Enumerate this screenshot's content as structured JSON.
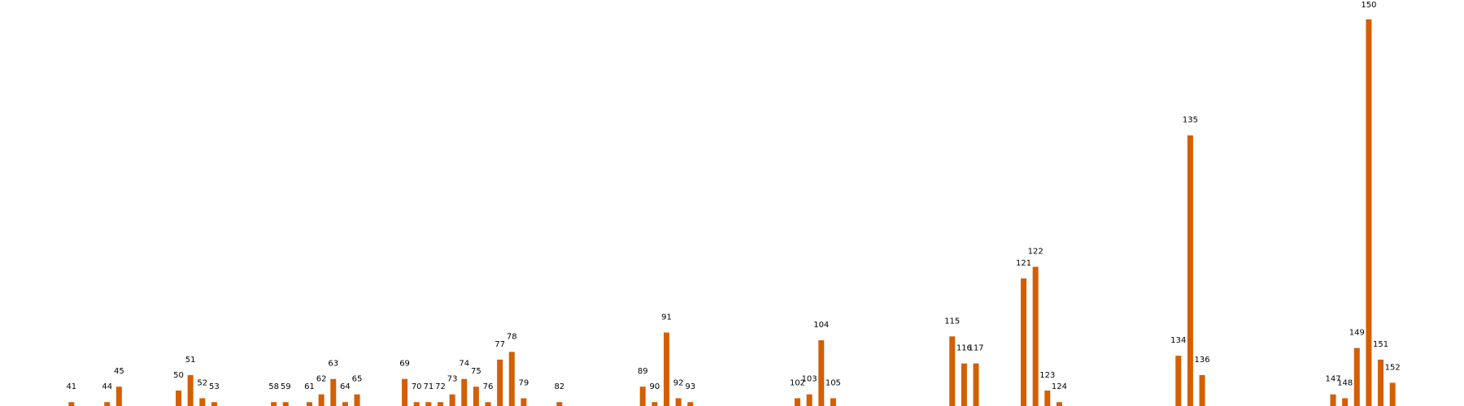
{
  "chart_data": {
    "type": "bar",
    "x": [
      41,
      44,
      45,
      50,
      51,
      52,
      53,
      58,
      59,
      61,
      62,
      63,
      64,
      65,
      69,
      70,
      71,
      72,
      73,
      74,
      75,
      76,
      77,
      78,
      79,
      82,
      89,
      90,
      91,
      92,
      93,
      102,
      103,
      104,
      105,
      115,
      116,
      117,
      121,
      122,
      123,
      124,
      134,
      135,
      136,
      147,
      148,
      149,
      150,
      151,
      152
    ],
    "values": [
      1,
      1,
      5,
      4,
      8,
      2,
      1,
      1,
      1,
      1,
      3,
      7,
      1,
      3,
      7,
      1,
      1,
      1,
      3,
      7,
      5,
      1,
      12,
      14,
      2,
      1,
      5,
      1,
      19,
      2,
      1,
      2,
      3,
      17,
      2,
      18,
      11,
      11,
      33,
      36,
      4,
      1,
      13,
      70,
      8,
      3,
      2,
      15,
      100,
      12,
      6
    ],
    "color": "#d45f00",
    "xlim": [
      35,
      158
    ],
    "ylim": [
      0,
      105
    ]
  }
}
